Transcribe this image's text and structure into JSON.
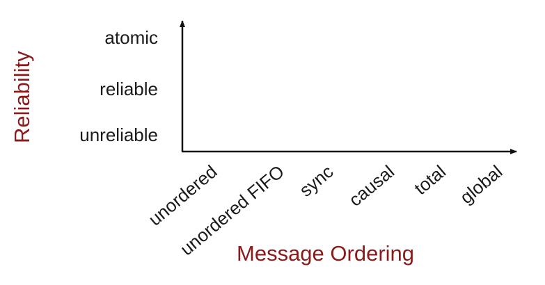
{
  "diagram": {
    "y_axis": {
      "title": "Reliability",
      "levels": [
        "unreliable",
        "reliable",
        "atomic"
      ]
    },
    "x_axis": {
      "title": "Message Ordering",
      "levels": [
        "unordered",
        "unordered FIFO",
        "sync",
        "causal",
        "total",
        "global"
      ]
    },
    "colors": {
      "axis_title": "#8b1a1a",
      "tick_text": "#1a1a1a",
      "axis_line": "#111111"
    }
  }
}
